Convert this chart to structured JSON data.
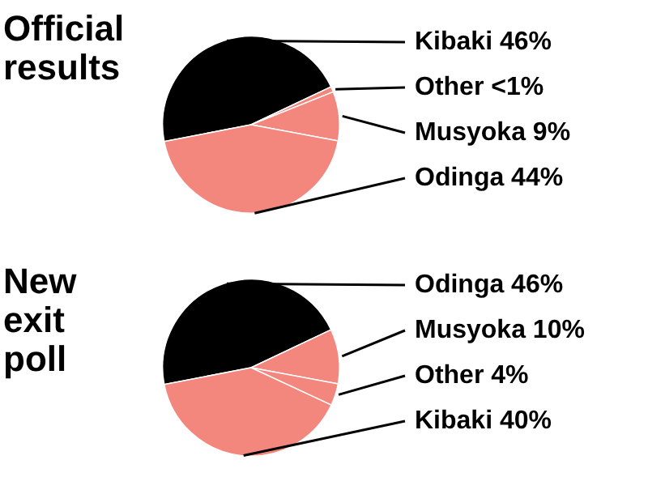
{
  "chart_data": [
    {
      "type": "pie",
      "title": "Official results",
      "categories": [
        "Kibaki",
        "Other",
        "Musyoka",
        "Odinga"
      ],
      "values": [
        46,
        1,
        9,
        44
      ],
      "value_labels": [
        "46%",
        "<1%",
        "9%",
        "44%"
      ],
      "colors": [
        "#000000",
        "#f4877d",
        "#f4877d",
        "#f4877d"
      ]
    },
    {
      "type": "pie",
      "title": "New exit poll",
      "categories": [
        "Odinga",
        "Musyoka",
        "Other",
        "Kibaki"
      ],
      "values": [
        46,
        10,
        4,
        40
      ],
      "value_labels": [
        "46%",
        "10%",
        "4%",
        "40%"
      ],
      "colors": [
        "#000000",
        "#f4877d",
        "#f4877d",
        "#f4877d"
      ]
    }
  ]
}
